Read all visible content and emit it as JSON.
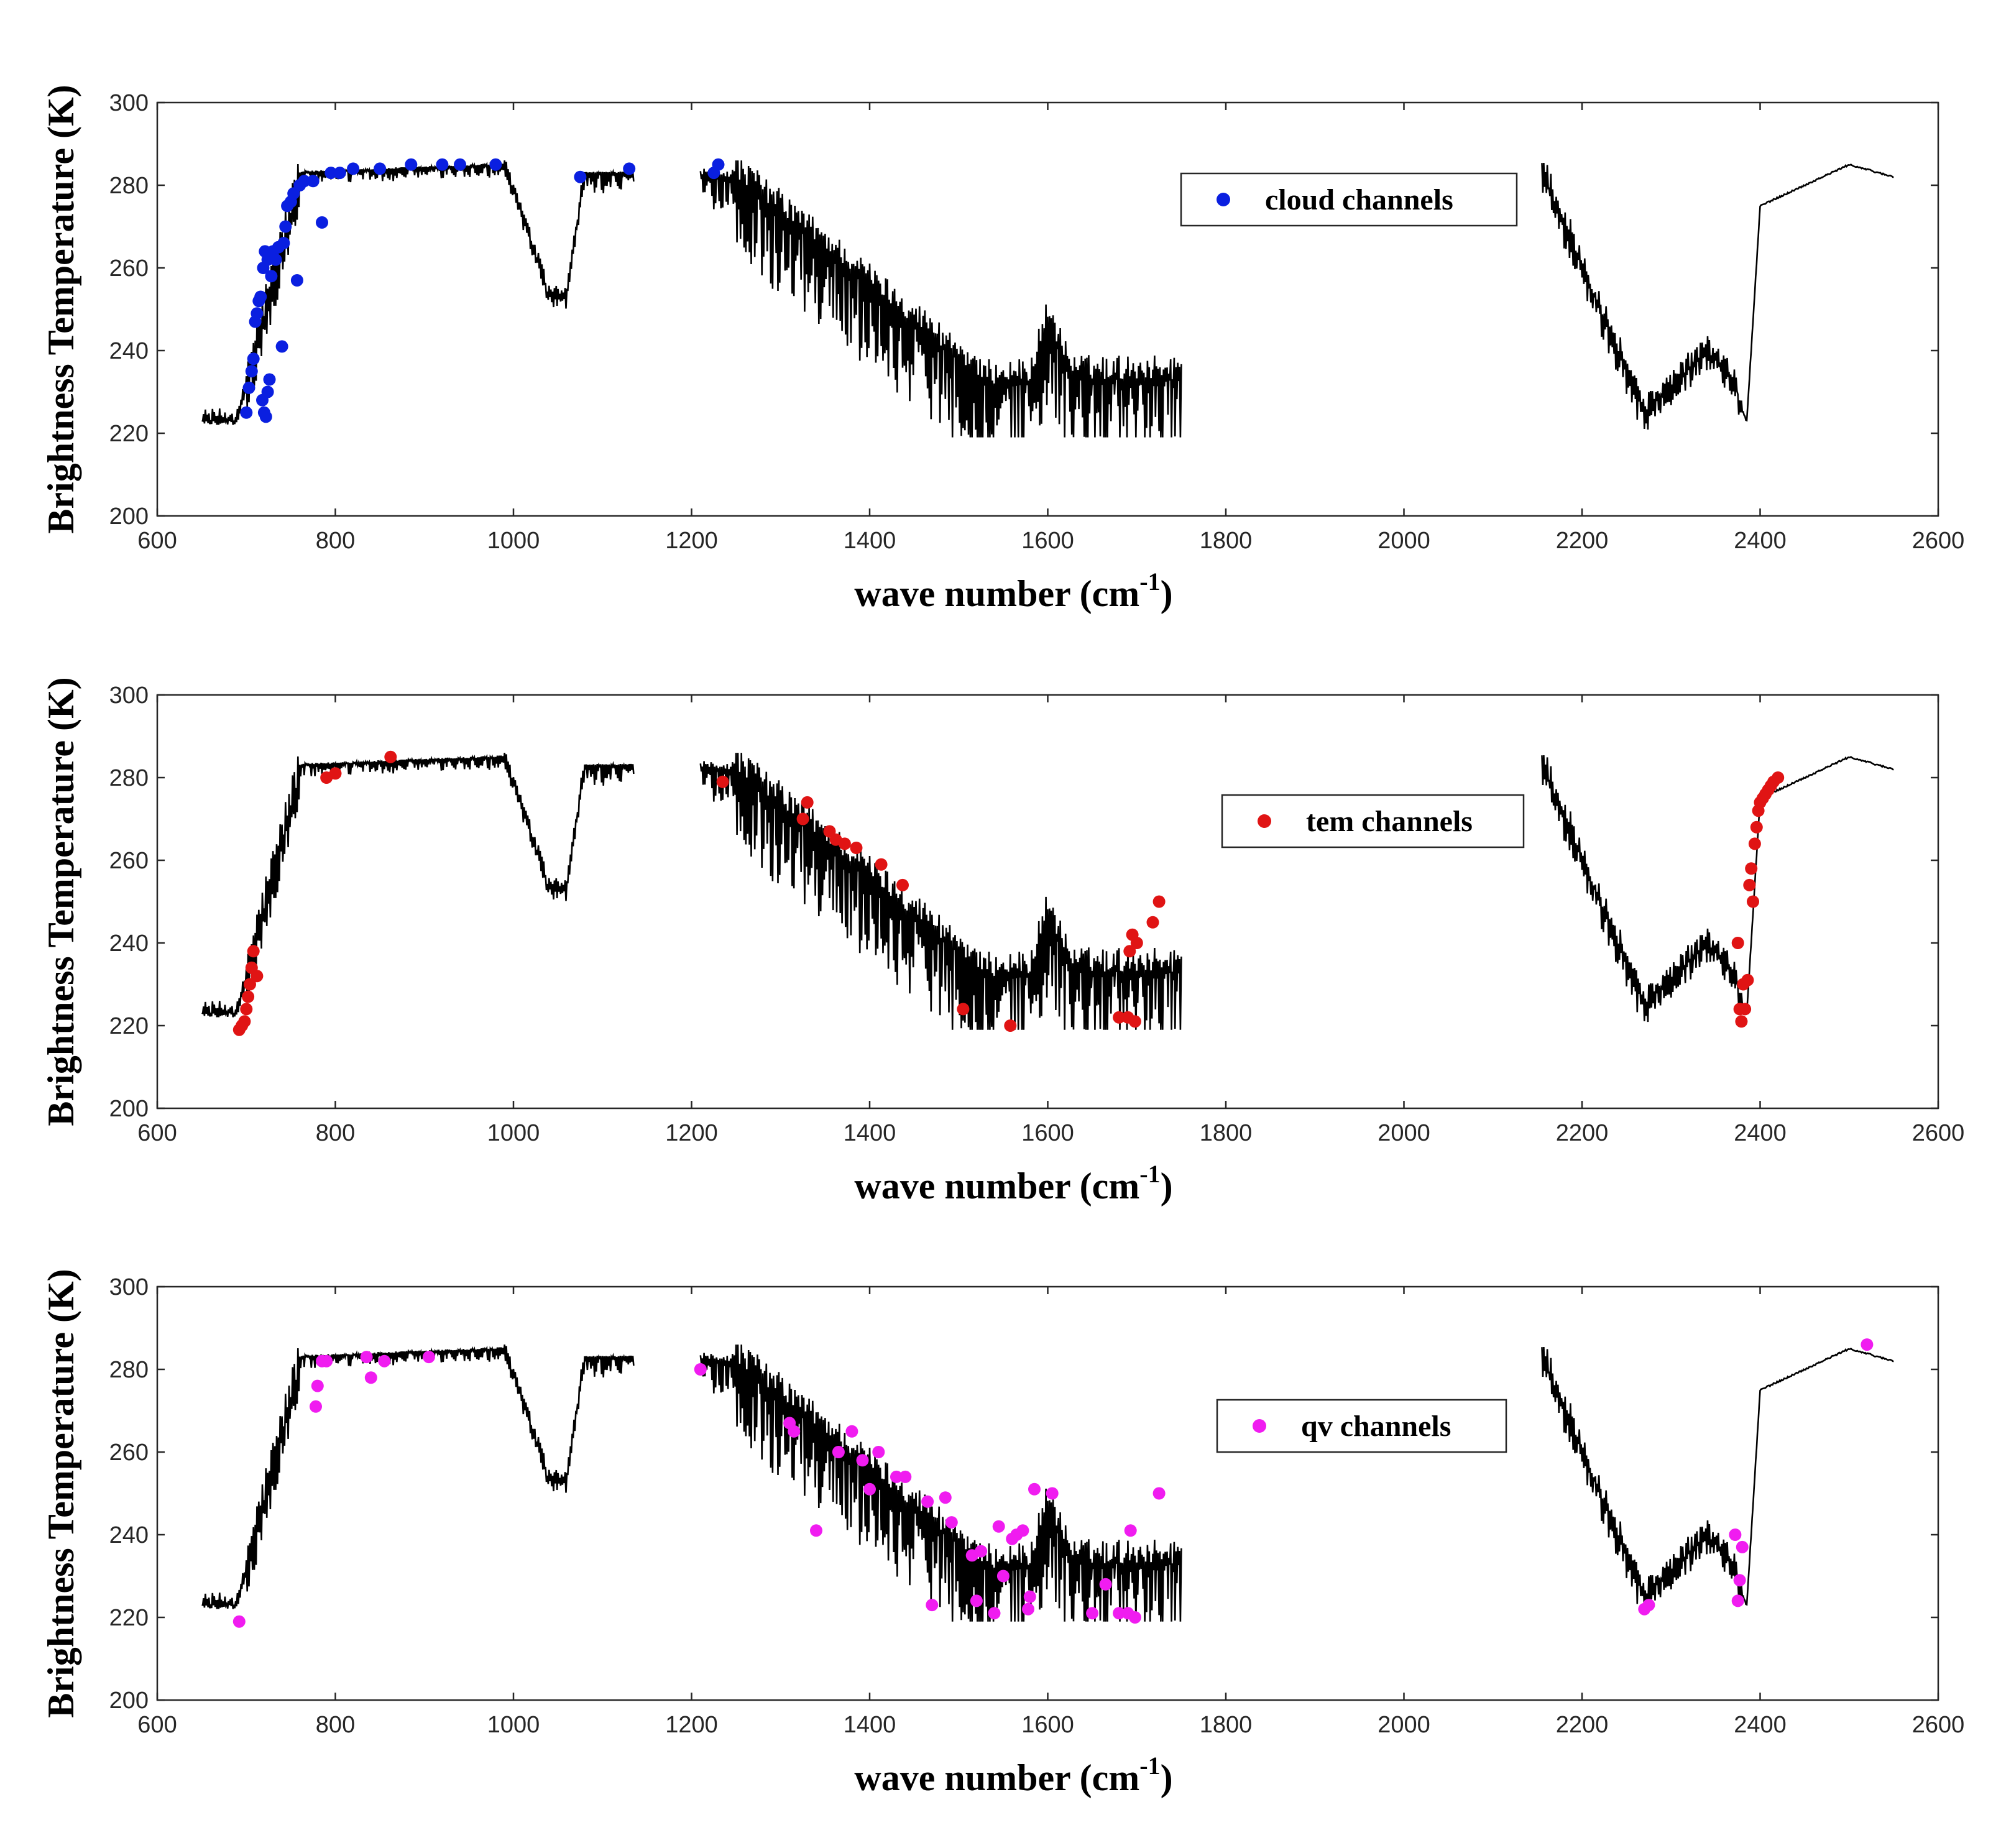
{
  "chart_data": [
    {
      "type": "line+scatter",
      "panel": "top",
      "xlabel": "wave number",
      "xlabel_unit": "(cm",
      "xlabel_exp": "-1",
      "xlabel_close": ")",
      "ylabel": "Brightness Temperature (K)",
      "xlim": [
        600,
        2600
      ],
      "ylim": [
        200,
        300
      ],
      "xticks": [
        600,
        800,
        1000,
        1200,
        1400,
        1600,
        1800,
        2000,
        2200,
        2400,
        2600
      ],
      "yticks": [
        200,
        220,
        240,
        260,
        280,
        300
      ],
      "legend": {
        "label": "cloud channels",
        "position": "upper-right",
        "color": "#0a1fe0"
      },
      "series": [
        {
          "name": "spectrum",
          "color": "#000000",
          "kind": "line"
        },
        {
          "name": "cloud channels",
          "color": "#0a1fe0",
          "kind": "scatter",
          "points": [
            [
              700,
              225
            ],
            [
              703,
              231
            ],
            [
              706,
              235
            ],
            [
              708,
              238
            ],
            [
              710,
              247
            ],
            [
              712,
              249
            ],
            [
              714,
              252
            ],
            [
              716,
              253
            ],
            [
              718,
              228
            ],
            [
              720,
              225
            ],
            [
              722,
              224
            ],
            [
              724,
              230
            ],
            [
              726,
              233
            ],
            [
              719,
              260
            ],
            [
              721,
              264
            ],
            [
              724,
              262
            ],
            [
              728,
              258
            ],
            [
              730,
              264
            ],
            [
              733,
              262
            ],
            [
              736,
              265
            ],
            [
              740,
              241
            ],
            [
              742,
              266
            ],
            [
              744,
              270
            ],
            [
              746,
              275
            ],
            [
              750,
              276
            ],
            [
              753,
              278
            ],
            [
              757,
              257
            ],
            [
              760,
              280
            ],
            [
              765,
              281
            ],
            [
              775,
              281
            ],
            [
              785,
              271
            ],
            [
              795,
              283
            ],
            [
              805,
              283
            ],
            [
              820,
              284
            ],
            [
              850,
              284
            ],
            [
              885,
              285
            ],
            [
              920,
              285
            ],
            [
              940,
              285
            ],
            [
              980,
              285
            ],
            [
              1075,
              282
            ],
            [
              1130,
              284
            ],
            [
              1225,
              283
            ],
            [
              1230,
              285
            ]
          ]
        }
      ]
    },
    {
      "type": "line+scatter",
      "panel": "middle",
      "xlabel": "wave number",
      "xlabel_unit": "(cm",
      "xlabel_exp": "-1",
      "xlabel_close": ")",
      "ylabel": "Brightness Temperature (K)",
      "xlim": [
        600,
        2600
      ],
      "ylim": [
        200,
        300
      ],
      "xticks": [
        600,
        800,
        1000,
        1200,
        1400,
        1600,
        1800,
        2000,
        2200,
        2400,
        2600
      ],
      "yticks": [
        200,
        220,
        240,
        260,
        280,
        300
      ],
      "legend": {
        "label": "tem channels",
        "position": "upper-right",
        "color": "#e01414"
      },
      "series": [
        {
          "name": "spectrum",
          "color": "#000000",
          "kind": "line"
        },
        {
          "name": "tem channels",
          "color": "#e01414",
          "kind": "scatter",
          "points": [
            [
              692,
              219
            ],
            [
              695,
              220
            ],
            [
              698,
              221
            ],
            [
              700,
              224
            ],
            [
              702,
              227
            ],
            [
              704,
              230
            ],
            [
              706,
              234
            ],
            [
              708,
              238
            ],
            [
              712,
              232
            ],
            [
              790,
              280
            ],
            [
              800,
              281
            ],
            [
              862,
              285
            ],
            [
              1235,
              279
            ],
            [
              1325,
              270
            ],
            [
              1330,
              274
            ],
            [
              1355,
              267
            ],
            [
              1362,
              265
            ],
            [
              1372,
              264
            ],
            [
              1385,
              263
            ],
            [
              1413,
              259
            ],
            [
              1437,
              254
            ],
            [
              1505,
              224
            ],
            [
              1558,
              220
            ],
            [
              1680,
              222
            ],
            [
              1690,
              222
            ],
            [
              1692,
              238
            ],
            [
              1695,
              242
            ],
            [
              1698,
              221
            ],
            [
              1700,
              240
            ],
            [
              1718,
              245
            ],
            [
              1725,
              250
            ],
            [
              2375,
              240
            ],
            [
              2377,
              224
            ],
            [
              2379,
              221
            ],
            [
              2381,
              230
            ],
            [
              2383,
              224
            ],
            [
              2386,
              231
            ],
            [
              2388,
              254
            ],
            [
              2390,
              258
            ],
            [
              2392,
              250
            ],
            [
              2394,
              264
            ],
            [
              2396,
              268
            ],
            [
              2398,
              272
            ],
            [
              2400,
              274
            ],
            [
              2403,
              275
            ],
            [
              2406,
              276
            ],
            [
              2409,
              277
            ],
            [
              2412,
              278
            ],
            [
              2415,
              279
            ],
            [
              2420,
              280
            ]
          ]
        }
      ]
    },
    {
      "type": "line+scatter",
      "panel": "bottom",
      "xlabel": "wave number",
      "xlabel_unit": "(cm",
      "xlabel_exp": "-1",
      "xlabel_close": ")",
      "ylabel": "Brightness Temperature (K)",
      "xlim": [
        600,
        2600
      ],
      "ylim": [
        200,
        300
      ],
      "xticks": [
        600,
        800,
        1000,
        1200,
        1400,
        1600,
        1800,
        2000,
        2200,
        2400,
        2600
      ],
      "yticks": [
        200,
        220,
        240,
        260,
        280,
        300
      ],
      "legend": {
        "label": "qv channels",
        "position": "upper-right",
        "color": "#f01cf0"
      },
      "series": [
        {
          "name": "spectrum",
          "color": "#000000",
          "kind": "line"
        },
        {
          "name": "qv channels",
          "color": "#f01cf0",
          "kind": "scatter",
          "points": [
            [
              692,
              219
            ],
            [
              778,
              271
            ],
            [
              780,
              276
            ],
            [
              785,
              282
            ],
            [
              790,
              282
            ],
            [
              835,
              283
            ],
            [
              840,
              278
            ],
            [
              855,
              282
            ],
            [
              905,
              283
            ],
            [
              1210,
              280
            ],
            [
              1310,
              267
            ],
            [
              1315,
              265
            ],
            [
              1340,
              241
            ],
            [
              1365,
              260
            ],
            [
              1380,
              265
            ],
            [
              1392,
              258
            ],
            [
              1400,
              251
            ],
            [
              1410,
              260
            ],
            [
              1430,
              254
            ],
            [
              1440,
              254
            ],
            [
              1465,
              248
            ],
            [
              1470,
              223
            ],
            [
              1485,
              249
            ],
            [
              1492,
              243
            ],
            [
              1515,
              235
            ],
            [
              1520,
              224
            ],
            [
              1525,
              236
            ],
            [
              1540,
              221
            ],
            [
              1545,
              242
            ],
            [
              1550,
              230
            ],
            [
              1560,
              239
            ],
            [
              1565,
              240
            ],
            [
              1572,
              241
            ],
            [
              1578,
              222
            ],
            [
              1580,
              225
            ],
            [
              1585,
              251
            ],
            [
              1605,
              250
            ],
            [
              1650,
              221
            ],
            [
              1665,
              228
            ],
            [
              1680,
              221
            ],
            [
              1690,
              221
            ],
            [
              1693,
              241
            ],
            [
              1698,
              220
            ],
            [
              1725,
              250
            ],
            [
              2270,
              222
            ],
            [
              2275,
              223
            ],
            [
              2372,
              240
            ],
            [
              2375,
              224
            ],
            [
              2377,
              229
            ],
            [
              2380,
              237
            ],
            [
              2520,
              286
            ]
          ]
        }
      ]
    }
  ]
}
